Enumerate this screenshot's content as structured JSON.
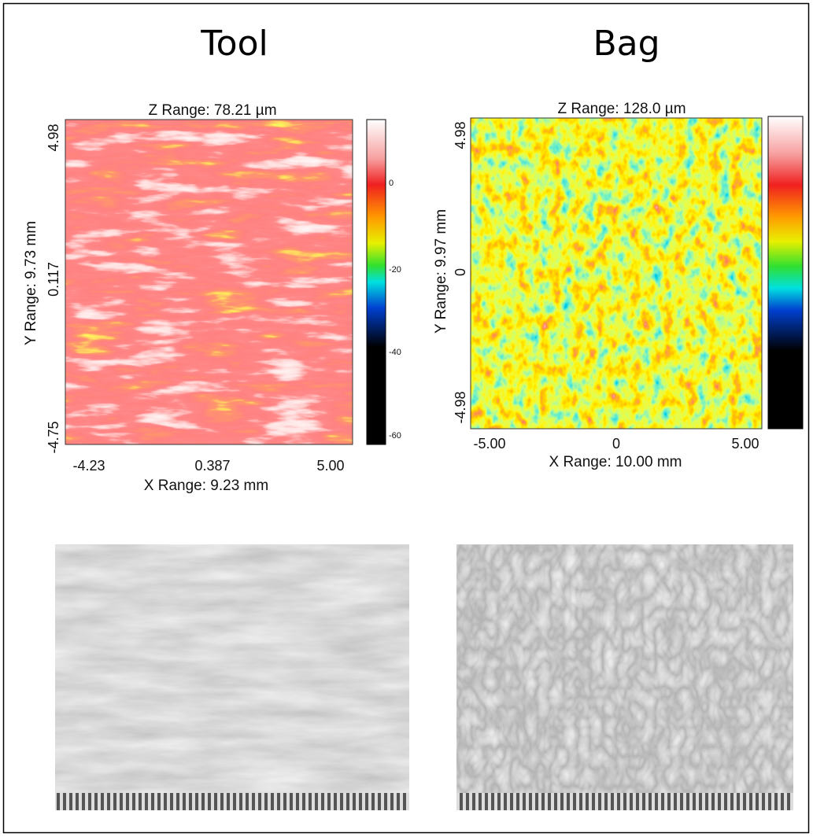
{
  "panels": [
    {
      "title": "Tool",
      "z_range": "Z Range:  78.21 µm",
      "y_range": "Y Range:  9.73 mm",
      "x_range": "X Range:  9.23 mm",
      "x_ticks": [
        "-4.23",
        "0.387",
        "5.00"
      ],
      "y_ticks": [
        "4.98",
        "0.117",
        "-4.75"
      ],
      "colorbar_ticks": [
        "0",
        "-20",
        "-40",
        "-60"
      ]
    },
    {
      "title": "Bag",
      "z_range": "Z Range:  128.0 µm",
      "y_range": "Y Range:  9.97 mm",
      "x_range": "X Range: 10.00 mm",
      "x_ticks": [
        "-5.00",
        "0",
        "5.00"
      ],
      "y_ticks": [
        "4.98",
        "0",
        "-4.98"
      ]
    }
  ]
}
